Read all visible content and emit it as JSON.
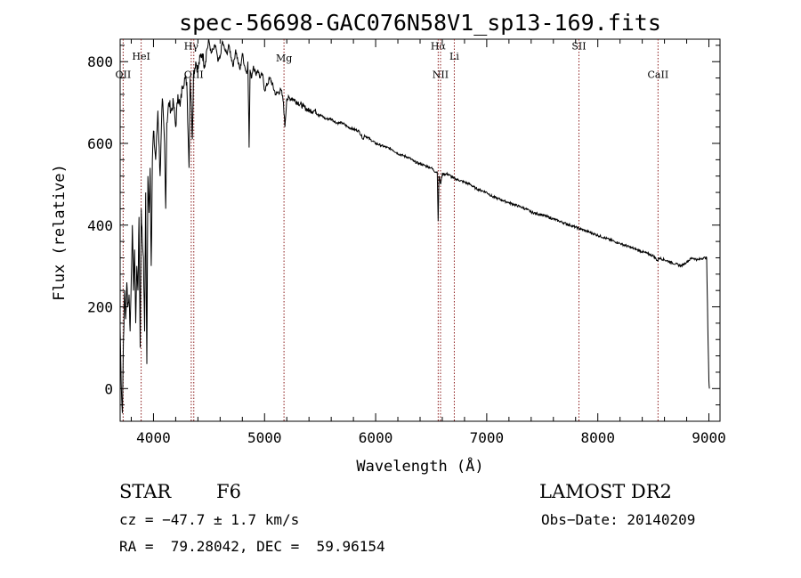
{
  "chart_data": {
    "type": "line",
    "title": "spec-56698-GAC076N58V1_sp13-169.fits",
    "xlabel": "Wavelength (Å)",
    "ylabel": "Flux (relative)",
    "xlim": [
      3700,
      9100
    ],
    "ylim": [
      -80,
      855
    ],
    "x_ticks": [
      4000,
      5000,
      6000,
      7000,
      8000,
      9000
    ],
    "y_ticks": [
      0,
      200,
      400,
      600,
      800
    ],
    "x_tick_labels": [
      "4000",
      "5000",
      "6000",
      "7000",
      "8000",
      "9000"
    ],
    "y_tick_labels": [
      "0",
      "200",
      "400",
      "600",
      "800"
    ],
    "grid": false,
    "legend": "none",
    "line_color": "#000000",
    "marker_color": "#8b1a1a",
    "series": [
      {
        "x": [
          3700,
          3710,
          3720,
          3730,
          3740,
          3750,
          3760,
          3770,
          3780,
          3790,
          3800,
          3810,
          3820,
          3830,
          3840,
          3850,
          3860,
          3870,
          3880,
          3890,
          3900,
          3910,
          3920,
          3930,
          3940,
          3950,
          3960,
          3970,
          3980,
          3990,
          4000,
          4020,
          4040,
          4060,
          4080,
          4100,
          4110,
          4120,
          4140,
          4160,
          4180,
          4200,
          4220,
          4240,
          4260,
          4280,
          4300,
          4320,
          4330,
          4340,
          4350,
          4360,
          4380,
          4400,
          4420,
          4440,
          4460,
          4480,
          4500,
          4520,
          4540,
          4560,
          4580,
          4600,
          4620,
          4640,
          4660,
          4680,
          4700,
          4720,
          4740,
          4760,
          4780,
          4800,
          4820,
          4840,
          4850,
          4861,
          4870,
          4880,
          4900,
          4920,
          4940,
          4960,
          4980,
          5000,
          5050,
          5100,
          5150,
          5170,
          5183,
          5200,
          5250,
          5300,
          5350,
          5400,
          5450,
          5500,
          5550,
          5600,
          5650,
          5700,
          5750,
          5800,
          5850,
          5890,
          5900,
          5950,
          6000,
          6050,
          6100,
          6150,
          6200,
          6250,
          6300,
          6350,
          6400,
          6450,
          6500,
          6540,
          6555,
          6563,
          6570,
          6585,
          6600,
          6650,
          6700,
          6750,
          6800,
          6850,
          6900,
          6950,
          7000,
          7050,
          7100,
          7150,
          7200,
          7250,
          7300,
          7350,
          7400,
          7450,
          7500,
          7550,
          7600,
          7650,
          7700,
          7750,
          7800,
          7850,
          7900,
          7950,
          8000,
          8050,
          8100,
          8150,
          8200,
          8250,
          8300,
          8350,
          8400,
          8450,
          8500,
          8540,
          8550,
          8600,
          8650,
          8700,
          8750,
          8800,
          8850,
          8900,
          8950,
          8980,
          8990,
          9000,
          9005
        ],
        "y": [
          150,
          10,
          -60,
          120,
          240,
          170,
          260,
          200,
          230,
          140,
          270,
          400,
          240,
          340,
          160,
          300,
          240,
          420,
          100,
          440,
          360,
          320,
          140,
          480,
          60,
          520,
          430,
          540,
          300,
          560,
          630,
          560,
          680,
          520,
          710,
          600,
          440,
          650,
          700,
          680,
          700,
          640,
          720,
          690,
          740,
          760,
          750,
          540,
          760,
          700,
          610,
          770,
          800,
          780,
          810,
          820,
          790,
          830,
          850,
          820,
          830,
          840,
          800,
          810,
          850,
          830,
          820,
          840,
          810,
          790,
          830,
          800,
          780,
          820,
          790,
          770,
          800,
          590,
          780,
          760,
          790,
          770,
          780,
          760,
          770,
          730,
          760,
          720,
          730,
          700,
          640,
          710,
          710,
          700,
          690,
          680,
          680,
          670,
          660,
          660,
          650,
          650,
          640,
          635,
          630,
          610,
          620,
          610,
          600,
          595,
          590,
          585,
          575,
          570,
          565,
          555,
          550,
          545,
          540,
          530,
          530,
          410,
          520,
          500,
          525,
          525,
          515,
          510,
          505,
          500,
          490,
          485,
          480,
          470,
          465,
          460,
          455,
          450,
          445,
          440,
          432,
          428,
          425,
          420,
          415,
          410,
          405,
          400,
          395,
          390,
          385,
          380,
          375,
          370,
          365,
          360,
          355,
          350,
          345,
          340,
          335,
          330,
          325,
          312,
          320,
          315,
          310,
          305,
          300,
          310,
          320,
          315,
          320,
          320,
          150,
          20,
          0
        ]
      }
    ],
    "annotations": [
      {
        "label": "OII",
        "x": 3727
      },
      {
        "label": "HeI",
        "x": 3889
      },
      {
        "label": "Hγ",
        "x": 4340
      },
      {
        "label": "OIII",
        "x": 4363
      },
      {
        "label": "Mg",
        "x": 5175
      },
      {
        "label": "Hα",
        "x": 6563
      },
      {
        "label": "NII",
        "x": 6584
      },
      {
        "label": "Li",
        "x": 6708
      },
      {
        "label": "SII",
        "x": 7830
      },
      {
        "label": "CaII",
        "x": 8542
      }
    ]
  },
  "info": {
    "object_class": "STAR",
    "subclass": "F6",
    "survey": "LAMOST DR2",
    "cz": "cz = −47.7 ± 1.7 km/s",
    "obs_date": "Obs−Date: 20140209",
    "coords": "RA =  79.28042, DEC =  59.96154"
  }
}
